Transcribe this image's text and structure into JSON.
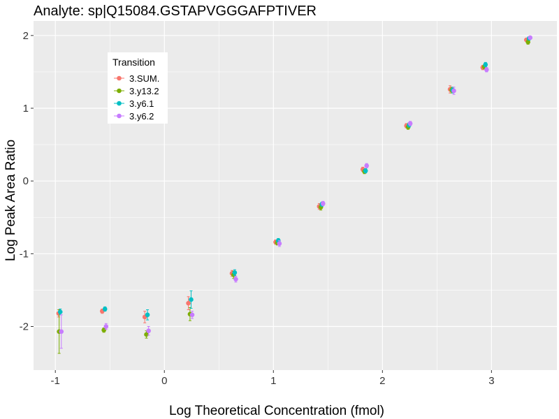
{
  "chart_data": {
    "type": "scatter",
    "title": "Analyte: sp|Q15084.GSTAPVGGGAFPTIVER",
    "xlabel": "Log Theoretical Concentration (fmol)",
    "ylabel": "Log Peak Area Ratio",
    "xlim": [
      -1.2,
      3.6
    ],
    "ylim": [
      -2.6,
      2.2
    ],
    "x_ticks": [
      -1,
      0,
      1,
      2,
      3
    ],
    "y_ticks": [
      -2,
      -1,
      0,
      1,
      2
    ],
    "x_tick_labels": [
      "-1",
      "0",
      "1",
      "2",
      "3"
    ],
    "y_tick_labels": [
      "-2",
      "-1",
      "0",
      "1",
      "2"
    ],
    "grid": true,
    "legend": {
      "title": "Transition",
      "position": "top-left"
    },
    "series": [
      {
        "name": "3.SUM.",
        "color": "#F8766D",
        "x": [
          -0.97,
          -0.57,
          -0.18,
          0.22,
          0.62,
          1.02,
          1.42,
          1.82,
          2.22,
          2.62,
          2.92,
          3.32
        ],
        "y": [
          -1.82,
          -1.79,
          -1.87,
          -1.68,
          -1.27,
          -0.84,
          -0.35,
          0.16,
          0.76,
          1.26,
          1.56,
          1.94
        ],
        "err": [
          0.05,
          0.03,
          0.08,
          0.09,
          0.04,
          0.03,
          0.04,
          0.03,
          0.03,
          0.05,
          0.03,
          0.02
        ]
      },
      {
        "name": "3.y13.2",
        "color": "#7CAE00",
        "x": [
          -0.965,
          -0.555,
          -0.165,
          0.235,
          0.635,
          1.035,
          1.435,
          1.835,
          2.235,
          2.635,
          2.935,
          3.335
        ],
        "y": [
          -2.07,
          -2.05,
          -2.11,
          -1.83,
          -1.29,
          -0.85,
          -0.36,
          0.13,
          0.74,
          1.25,
          1.57,
          1.91
        ],
        "err": [
          0.3,
          0.03,
          0.05,
          0.09,
          0.05,
          0.03,
          0.04,
          0.03,
          0.03,
          0.04,
          0.03,
          0.03
        ]
      },
      {
        "name": "3.y6.1",
        "color": "#00BFC4",
        "x": [
          -0.955,
          -0.545,
          -0.155,
          0.245,
          0.645,
          1.045,
          1.445,
          1.845,
          2.245,
          2.645,
          2.945,
          3.345
        ],
        "y": [
          -1.8,
          -1.76,
          -1.84,
          -1.63,
          -1.26,
          -0.82,
          -0.32,
          0.14,
          0.77,
          1.25,
          1.6,
          1.96
        ],
        "err": [
          0.04,
          0.03,
          0.07,
          0.12,
          0.04,
          0.03,
          0.03,
          0.03,
          0.03,
          0.04,
          0.03,
          0.02
        ]
      },
      {
        "name": "3.y6.2",
        "color": "#C77CFF",
        "x": [
          -0.945,
          -0.535,
          -0.145,
          0.255,
          0.655,
          1.055,
          1.455,
          1.855,
          2.255,
          2.655,
          2.955,
          3.355
        ],
        "y": [
          -2.07,
          -2.0,
          -2.06,
          -1.84,
          -1.35,
          -0.86,
          -0.31,
          0.21,
          0.79,
          1.24,
          1.53,
          1.97
        ],
        "err": [
          0.23,
          0.04,
          0.06,
          0.05,
          0.04,
          0.04,
          0.03,
          0.03,
          0.03,
          0.05,
          0.03,
          0.02
        ]
      }
    ]
  }
}
